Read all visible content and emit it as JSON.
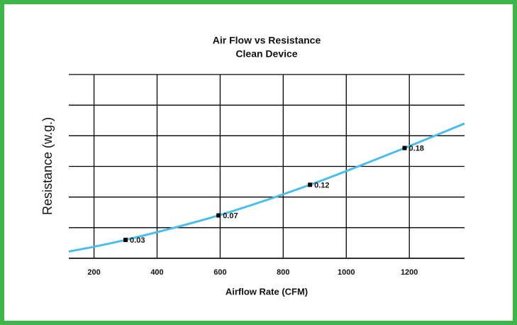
{
  "chart_data": {
    "type": "line",
    "title": "Air Flow vs Resistance",
    "subtitle": "Clean Device",
    "x_label": "Airflow Rate (CFM)",
    "y_label": "Resistance (w.g.)",
    "xlim": [
      120,
      1375
    ],
    "xticks": [
      200,
      400,
      600,
      800,
      1000,
      1200
    ],
    "ylim": [
      0,
      0.3
    ],
    "yticks": [
      0,
      0.05,
      0.1,
      0.15,
      0.2,
      0.25,
      0.3
    ],
    "grid": true,
    "series": [
      {
        "color": "#4cbde9",
        "x": [
          120,
          300,
          595,
          885,
          1185,
          1375
        ],
        "values": [
          0.011,
          0.03,
          0.07,
          0.12,
          0.18,
          0.22
        ]
      },
      {
        "color": "#000000",
        "markers": true,
        "x": [
          300,
          595,
          885,
          1185
        ],
        "values": [
          0.03,
          0.07,
          0.12,
          0.18
        ]
      }
    ]
  }
}
